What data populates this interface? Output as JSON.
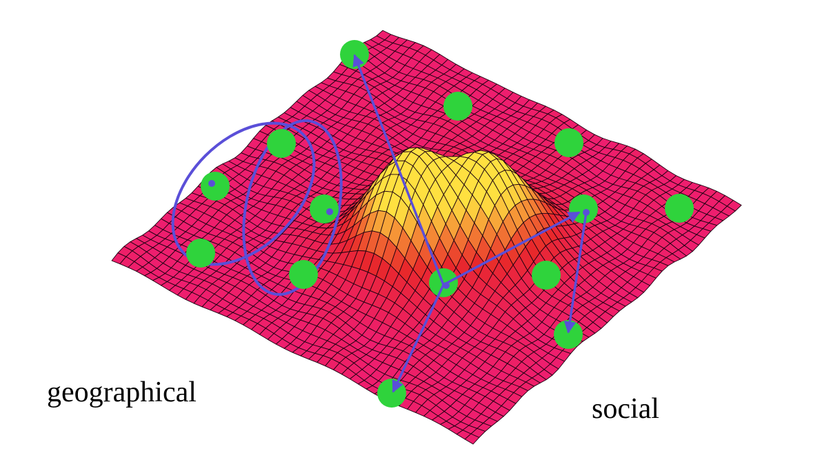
{
  "labels": {
    "geographical": "geographical",
    "social": "social"
  },
  "colors": {
    "surface_base": "#ee1e6e",
    "surface_mid": "#e8282a",
    "surface_high": "#ffe040",
    "mesh_line": "#1a0010",
    "node_fill": "#2fd33c",
    "link_color": "#5a4fd8"
  },
  "nodes": [
    {
      "id": "n1"
    },
    {
      "id": "n2"
    },
    {
      "id": "n3"
    },
    {
      "id": "n4"
    },
    {
      "id": "n5"
    },
    {
      "id": "n6"
    },
    {
      "id": "n7"
    },
    {
      "id": "n8"
    },
    {
      "id": "n9"
    },
    {
      "id": "n10"
    },
    {
      "id": "n11"
    },
    {
      "id": "n12"
    },
    {
      "id": "n13"
    },
    {
      "id": "n14"
    }
  ]
}
